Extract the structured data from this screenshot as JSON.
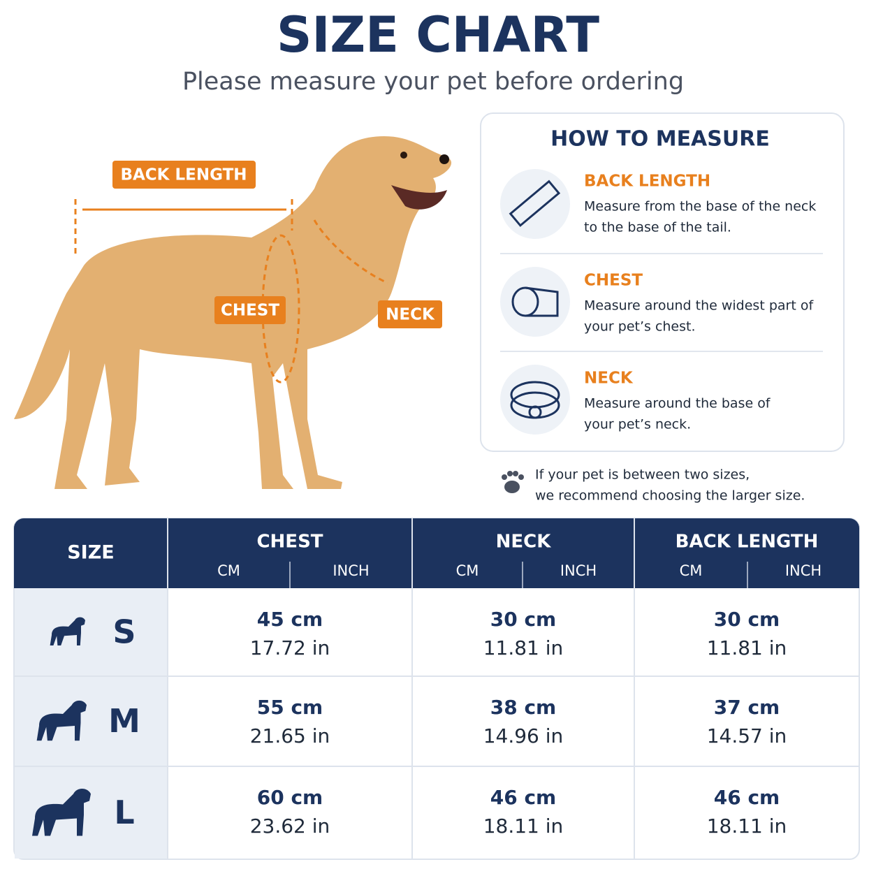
{
  "header": {
    "title": "SIZE CHART",
    "subtitle": "Please measure your pet before ordering"
  },
  "diagram": {
    "back_length": "BACK LENGTH",
    "chest": "CHEST",
    "neck": "NECK"
  },
  "how_to_measure": {
    "title": "HOW TO MEASURE",
    "items": [
      {
        "title": "BACK LENGTH",
        "lines": [
          "Measure from the base of the neck",
          "to the base of the tail."
        ]
      },
      {
        "title": "CHEST",
        "lines": [
          "Measure around the widest part of",
          "your pet’s chest."
        ]
      },
      {
        "title": "NECK",
        "lines": [
          "Measure around the base of",
          "your pet’s neck."
        ]
      }
    ]
  },
  "note": [
    "If your pet is between two sizes,",
    "we recommend choosing the larger size."
  ],
  "table": {
    "size_header": "SIZE",
    "groups": [
      {
        "name": "CHEST",
        "units": [
          "CM",
          "INCH"
        ]
      },
      {
        "name": "NECK",
        "units": [
          "CM",
          "INCH"
        ]
      },
      {
        "name": "BACK LENGTH",
        "units": [
          "CM",
          "INCH"
        ]
      }
    ],
    "rows": [
      {
        "size": "S",
        "cells": [
          [
            "45 cm",
            "17.72 in"
          ],
          [
            "30 cm",
            "11.81 in"
          ],
          [
            "30 cm",
            "11.81 in"
          ]
        ]
      },
      {
        "size": "M",
        "cells": [
          [
            "55 cm",
            "21.65 in"
          ],
          [
            "38 cm",
            "14.96 in"
          ],
          [
            "37 cm",
            "14.57 in"
          ]
        ]
      },
      {
        "size": "L",
        "cells": [
          [
            "60 cm",
            "23.62 in"
          ],
          [
            "46 cm",
            "18.11 in"
          ],
          [
            "46 cm",
            "18.11 in"
          ]
        ]
      }
    ]
  }
}
